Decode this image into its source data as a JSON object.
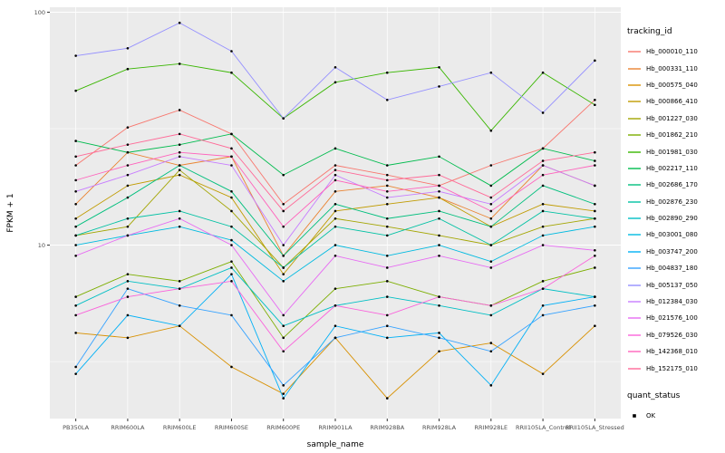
{
  "chart_data": {
    "type": "line",
    "title": "",
    "xlabel": "sample_name",
    "ylabel": "FPKM + 1",
    "y_scale": "log10",
    "ylim": [
      1.8,
      105
    ],
    "y_major_ticks": [
      10,
      100
    ],
    "y_tick_labels": [
      "10",
      "100"
    ],
    "y_minor_ticks": [
      3.162,
      31.62
    ],
    "grid": true,
    "legend_position": "right",
    "panel_bg": "#EBEBEB",
    "grid_color": "#FFFFFF",
    "point_color": "#000000",
    "categories": [
      "PB350LA",
      "RRIM600LA",
      "RRIM600LE",
      "RRIM600SE",
      "RRIM600PE",
      "RRIM901LA",
      "RRIM928BA",
      "RRIM928LA",
      "RRIM928LE",
      "RRII105LA_Control",
      "RRII105LA_Stressed"
    ],
    "series": [
      {
        "name": "Hb_000010_110",
        "color": "#F8766D",
        "values": [
          22,
          32,
          38,
          30,
          15,
          22,
          20,
          18,
          22,
          26,
          42
        ]
      },
      {
        "name": "Hb_000331_110",
        "color": "#EA8331",
        "values": [
          15,
          25,
          22,
          24,
          9,
          17,
          18,
          16,
          13,
          22,
          18
        ]
      },
      {
        "name": "Hb_000575_040",
        "color": "#D89000",
        "values": [
          4.2,
          4.0,
          4.5,
          3.0,
          2.3,
          4.0,
          2.2,
          3.5,
          3.8,
          2.8,
          4.5
        ]
      },
      {
        "name": "Hb_000866_410",
        "color": "#C09B00",
        "values": [
          13,
          18,
          20,
          16,
          7.5,
          14,
          15,
          16,
          12,
          15,
          14
        ]
      },
      {
        "name": "Hb_001227_030",
        "color": "#A3A500",
        "values": [
          11,
          12,
          21,
          14,
          8,
          13,
          12,
          11,
          10,
          12,
          13
        ]
      },
      {
        "name": "Hb_001862_210",
        "color": "#7CAE00",
        "values": [
          6,
          7.5,
          7,
          8.5,
          4,
          6.5,
          7,
          6,
          5.5,
          7,
          8
        ]
      },
      {
        "name": "Hb_001981_030",
        "color": "#39B600",
        "values": [
          46,
          57,
          60,
          55,
          35,
          50,
          55,
          58,
          31,
          55,
          40
        ]
      },
      {
        "name": "Hb_002217_110",
        "color": "#00BB4E",
        "values": [
          28,
          25,
          27,
          30,
          20,
          26,
          22,
          24,
          18,
          26,
          23
        ]
      },
      {
        "name": "Hb_002686_170",
        "color": "#00BF7D",
        "values": [
          12,
          16,
          22,
          17,
          9,
          15,
          13,
          14,
          12,
          18,
          15
        ]
      },
      {
        "name": "Hb_002876_230",
        "color": "#00C1A3",
        "values": [
          11,
          13,
          14,
          12,
          8,
          12,
          11,
          13,
          10,
          14,
          13
        ]
      },
      {
        "name": "Hb_002890_290",
        "color": "#00BFC4",
        "values": [
          5.5,
          7,
          6.5,
          8,
          4.5,
          5.5,
          6,
          5.5,
          5,
          6.5,
          6
        ]
      },
      {
        "name": "Hb_003001_080",
        "color": "#00BAE0",
        "values": [
          10,
          11,
          12,
          10.5,
          7,
          10,
          9,
          10,
          8.5,
          11,
          12
        ]
      },
      {
        "name": "Hb_003747_200",
        "color": "#00B0F6",
        "values": [
          2.8,
          5,
          4.5,
          7.5,
          2.2,
          4.5,
          4,
          4.2,
          2.5,
          5.5,
          6
        ]
      },
      {
        "name": "Hb_004837_180",
        "color": "#35A2FF",
        "values": [
          3,
          6.5,
          5.5,
          5,
          2.5,
          4,
          4.5,
          4,
          3.5,
          5,
          5.5
        ]
      },
      {
        "name": "Hb_005137_050",
        "color": "#9590FF",
        "values": [
          65,
          70,
          90,
          68,
          35,
          58,
          42,
          48,
          55,
          37,
          62
        ]
      },
      {
        "name": "Hb_012384_030",
        "color": "#C77CFF",
        "values": [
          17,
          20,
          24,
          22,
          10,
          20,
          16,
          17,
          15,
          22,
          18
        ]
      },
      {
        "name": "Hb_021576_100",
        "color": "#E76BF3",
        "values": [
          9,
          11,
          13,
          10,
          5,
          9,
          8,
          9,
          8,
          10,
          9.5
        ]
      },
      {
        "name": "Hb_079526_030",
        "color": "#FA62DB",
        "values": [
          5,
          6,
          6.5,
          7,
          3.5,
          5.5,
          5,
          6,
          5.5,
          6.5,
          9
        ]
      },
      {
        "name": "Hb_142368_010",
        "color": "#FF62BC",
        "values": [
          19,
          22,
          25,
          24,
          12,
          19,
          17,
          18,
          14,
          20,
          22
        ]
      },
      {
        "name": "Hb_152175_010",
        "color": "#FF6A98",
        "values": [
          24,
          27,
          30,
          26,
          14,
          21,
          19,
          20,
          16,
          23,
          25
        ]
      }
    ]
  },
  "legend": {
    "tracking_title": "tracking_id",
    "quant_title": "quant_status",
    "quant_items": [
      {
        "label": "OK",
        "color": "#000000"
      }
    ]
  }
}
